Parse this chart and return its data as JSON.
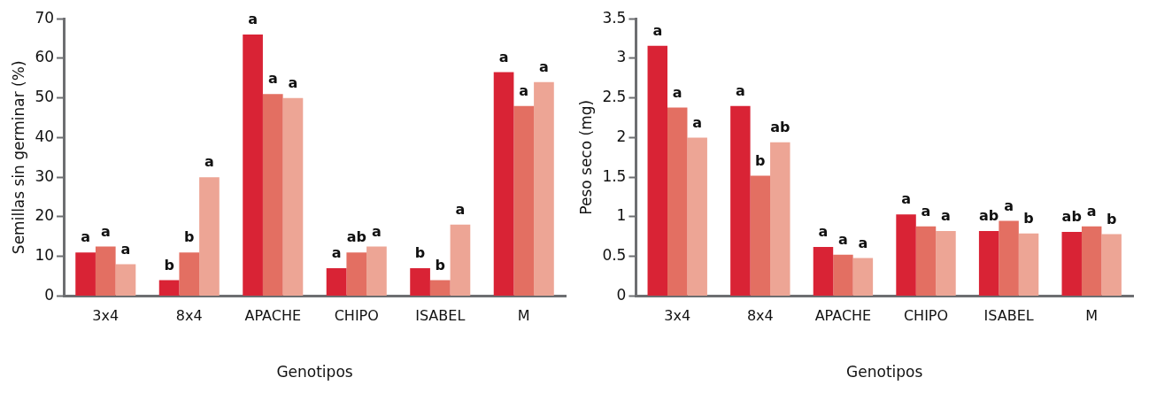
{
  "chart_data": [
    {
      "type": "bar",
      "xlabel": "Genotipos",
      "ylabel": "Semillas sin germinar (%)",
      "categories": [
        "3x4",
        "8x4",
        "APACHE",
        "CHIPO",
        "ISABEL",
        "M"
      ],
      "ylim": [
        0,
        70
      ],
      "yticks": [
        0,
        10,
        20,
        30,
        40,
        50,
        60,
        70
      ],
      "series": [
        {
          "color": "#d92335",
          "values": [
            11,
            4,
            66,
            7,
            7,
            56.5
          ],
          "value_labels": [
            "a",
            "b",
            "a",
            "a",
            "b",
            "a"
          ]
        },
        {
          "color": "#e36f62",
          "values": [
            12.5,
            11,
            51,
            11,
            4,
            48
          ],
          "value_labels": [
            "a",
            "b",
            "a",
            "ab",
            "b",
            "a"
          ]
        },
        {
          "color": "#eda595",
          "values": [
            8,
            30,
            50,
            12.5,
            18,
            54
          ],
          "value_labels": [
            "a",
            "a",
            "a",
            "a",
            "a",
            "a"
          ]
        }
      ]
    },
    {
      "type": "bar",
      "xlabel": "Genotipos",
      "ylabel": "Peso seco (mg)",
      "categories": [
        "3x4",
        "8x4",
        "APACHE",
        "CHIPO",
        "ISABEL",
        "M"
      ],
      "ylim": [
        0,
        3.5
      ],
      "yticks": [
        0,
        0.5,
        1,
        1.5,
        2,
        2.5,
        3,
        3.5
      ],
      "series": [
        {
          "color": "#d92335",
          "values": [
            3.16,
            2.4,
            0.62,
            1.03,
            0.82,
            0.81
          ],
          "value_labels": [
            "a",
            "a",
            "a",
            "a",
            "ab",
            "ab"
          ]
        },
        {
          "color": "#e36f62",
          "values": [
            2.38,
            1.52,
            0.52,
            0.88,
            0.95,
            0.88
          ],
          "value_labels": [
            "a",
            "b",
            "a",
            "a",
            "a",
            "a"
          ]
        },
        {
          "color": "#eda595",
          "values": [
            2.0,
            1.94,
            0.48,
            0.82,
            0.79,
            0.78
          ],
          "value_labels": [
            "a",
            "ab",
            "a",
            "a",
            "b",
            "b"
          ]
        }
      ]
    }
  ]
}
